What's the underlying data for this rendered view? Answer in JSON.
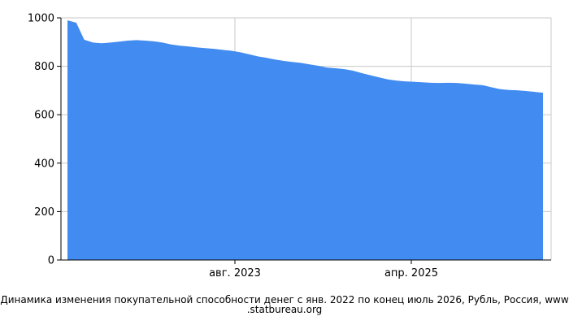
{
  "colors": {
    "fill": "#428bf0",
    "grid": "#c8c8c8",
    "axis": "#000000",
    "background": "#ffffff"
  },
  "caption": {
    "line1": "Динамика изменения покупательной способности денег с янв. 2022 по конец июль 2026, Рубль, Россия, www",
    "line2": ".statbureau.org"
  },
  "chart_data": {
    "type": "area",
    "title": "",
    "xlabel": "",
    "ylabel": "",
    "ylim": [
      0,
      1000
    ],
    "y_ticks": [
      0,
      200,
      400,
      600,
      800,
      1000
    ],
    "x_ticks": [
      {
        "date": "2023-08-01",
        "label": "авг. 2023"
      },
      {
        "date": "2025-04-01",
        "label": "апр. 2025"
      }
    ],
    "xlim": [
      "2021-12-01",
      "2026-09-30"
    ],
    "grid": true,
    "legend": "none",
    "series": [
      {
        "x": [
          "2022-01-01",
          "2022-02-01",
          "2022-03-01",
          "2022-04-01",
          "2022-05-01",
          "2022-06-01",
          "2022-07-01",
          "2022-08-01",
          "2022-09-01",
          "2022-10-01",
          "2022-11-01",
          "2022-12-01",
          "2023-01-01",
          "2023-02-01",
          "2023-03-01",
          "2023-04-01",
          "2023-05-01",
          "2023-06-01",
          "2023-07-01",
          "2023-08-01",
          "2023-09-01",
          "2023-10-01",
          "2023-11-01",
          "2023-12-01",
          "2024-01-01",
          "2024-02-01",
          "2024-03-01",
          "2024-04-01",
          "2024-05-01",
          "2024-06-01",
          "2024-07-01",
          "2024-08-01",
          "2024-09-01",
          "2024-10-01",
          "2024-11-01",
          "2024-12-01",
          "2025-01-01",
          "2025-02-01",
          "2025-03-01",
          "2025-04-01",
          "2025-05-01",
          "2025-06-01",
          "2025-07-01",
          "2025-08-01",
          "2025-09-01",
          "2025-10-01",
          "2025-11-01",
          "2025-12-01",
          "2026-01-01",
          "2026-02-01",
          "2026-03-01",
          "2026-04-01",
          "2026-05-01",
          "2026-06-01",
          "2026-07-31"
        ],
        "values": [
          990,
          980,
          910,
          898,
          895,
          898,
          902,
          906,
          908,
          906,
          903,
          898,
          890,
          885,
          882,
          878,
          875,
          872,
          868,
          864,
          858,
          850,
          841,
          835,
          828,
          822,
          818,
          814,
          808,
          802,
          795,
          792,
          788,
          782,
          772,
          763,
          754,
          746,
          741,
          738,
          736,
          734,
          732,
          731,
          732,
          731,
          728,
          725,
          722,
          713,
          706,
          702,
          701,
          698,
          691
        ]
      }
    ]
  }
}
